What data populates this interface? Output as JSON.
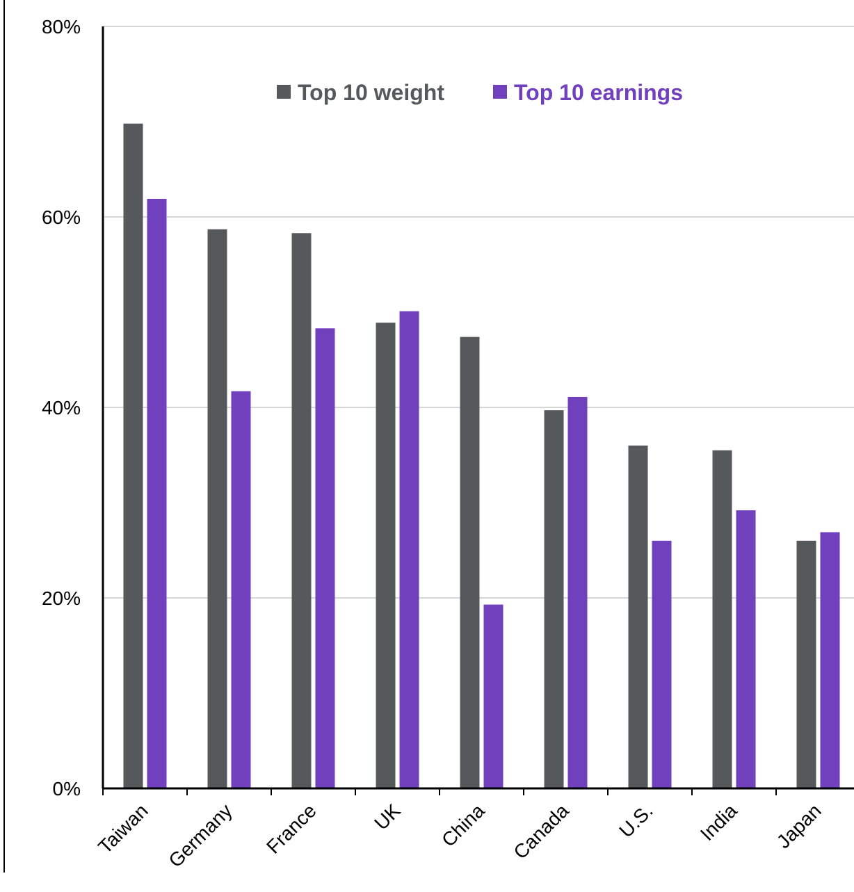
{
  "chart_data": {
    "type": "bar",
    "categories": [
      "Taiwan",
      "Germany",
      "France",
      "UK",
      "China",
      "Canada",
      "U.S.",
      "India",
      "Japan"
    ],
    "series": [
      {
        "name": "Top 10 weight",
        "color": "#55595c",
        "values": [
          69.8,
          58.7,
          58.3,
          48.9,
          47.4,
          39.7,
          36.0,
          35.5,
          26.0
        ]
      },
      {
        "name": "Top 10 earnings",
        "color": "#7140bd",
        "values": [
          61.9,
          41.7,
          48.3,
          50.1,
          19.3,
          41.1,
          26.0,
          29.2,
          26.9
        ]
      }
    ],
    "y_ticks": [
      "0%",
      "20%",
      "40%",
      "60%",
      "80%"
    ],
    "ylim": [
      0,
      80
    ],
    "grid": true,
    "legend_position": "top"
  }
}
